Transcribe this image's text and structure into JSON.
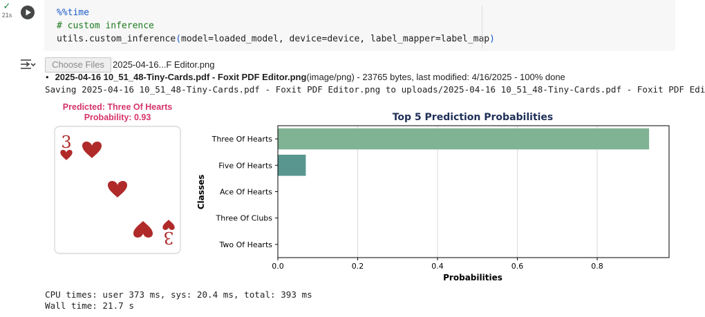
{
  "cell": {
    "exec_time": "21s",
    "code_lines": [
      {
        "kind": "magic",
        "text": "%%time"
      },
      {
        "kind": "comment",
        "text": "# custom inference"
      },
      {
        "kind": "call",
        "before": "utils.custom_inference",
        "open": "(",
        "args": "model=loaded_model, device=device, label_mapper=label_map",
        "close": ")"
      }
    ]
  },
  "output": {
    "choose_files_label": "Choose Files",
    "file_chosen": "2025-04-16...F Editor.png",
    "upload_bullet": "•",
    "upload_filename": "2025-04-16 10_51_48-Tiny-Cards.pdf - Foxit PDF Editor.png",
    "upload_meta": "(image/png) - 23765 bytes, last modified: 4/16/2025 - 100% done",
    "saving_line": "Saving 2025-04-16 10_51_48-Tiny-Cards.pdf - Foxit PDF Editor.png to uploads/2025-04-16 10_51_48-Tiny-Cards.pdf - Foxit PDF Edi",
    "predicted_label": "Predicted: Three Of Hearts",
    "probability_label": "Probability: 0.93",
    "card": {
      "rank": "3",
      "suit_color": "#b02a2a"
    },
    "cpu_times": "CPU times: user 373 ms, sys: 20.4 ms, total: 393 ms",
    "wall_time": "Wall time: 21.7 s"
  },
  "colors": {
    "accent_pink": "#d6336c",
    "bar_top": "#80b294",
    "bar_second": "#5a9690",
    "title_navy": "#1f2f57"
  },
  "chart_data": {
    "type": "bar",
    "orientation": "horizontal",
    "title": "Top 5 Prediction Probabilities",
    "xlabel": "Probabilities",
    "ylabel": "Classes",
    "categories": [
      "Three Of Hearts",
      "Five Of Hearts",
      "Ace Of Hearts",
      "Three Of Clubs",
      "Two Of Hearts"
    ],
    "values": [
      0.93,
      0.07,
      0.0,
      0.0,
      0.0
    ],
    "xlim": [
      0,
      0.98
    ],
    "xticks": [
      0.0,
      0.2,
      0.4,
      0.6,
      0.8
    ],
    "xtick_labels": [
      "0.0",
      "0.2",
      "0.4",
      "0.6",
      "0.8"
    ],
    "grid": "vertical"
  }
}
